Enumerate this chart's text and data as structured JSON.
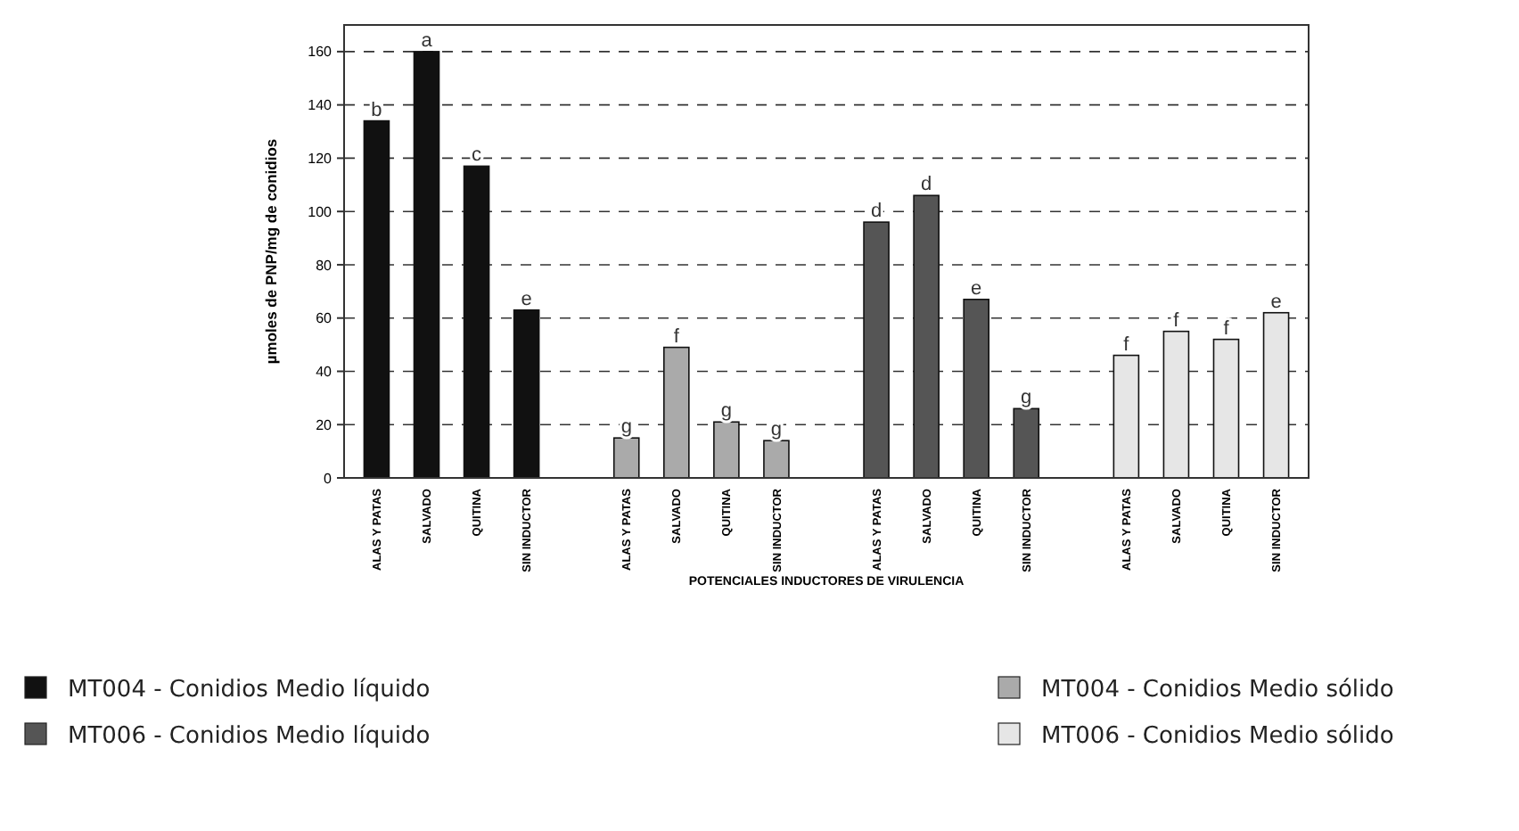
{
  "chart_data": {
    "type": "bar",
    "xlabel": "POTENCIALES INDUCTORES DE VIRULENCIA",
    "ylabel": "µmoles de PNP/mg de conidios",
    "categories": [
      "ALAS Y PATAS",
      "SALVADO",
      "QUITINA",
      "SIN INDUCTOR",
      null,
      "ALAS Y PATAS",
      "SALVADO",
      "QUITINA",
      "SIN INDUCTOR",
      null,
      "ALAS Y PATAS",
      "SALVADO",
      "QUITINA",
      "SIN INDUCTOR",
      null,
      "ALAS Y PATAS",
      "SALVADO",
      "QUITINA",
      "SIN INDUCTOR"
    ],
    "series": [
      {
        "name": "MT004 - Conidios Medio líquido",
        "color": "#111111",
        "values": [
          134,
          160,
          117,
          63,
          null,
          null,
          null,
          null,
          null,
          null,
          null,
          null,
          null,
          null,
          null,
          null,
          null,
          null,
          null
        ],
        "value_labels": [
          "b",
          "a",
          "c",
          "e",
          null,
          null,
          null,
          null,
          null,
          null,
          null,
          null,
          null,
          null,
          null,
          null,
          null,
          null,
          null
        ]
      },
      {
        "name": "MT006 - Conidios Medio líquido",
        "color": "#555555",
        "values": [
          null,
          null,
          null,
          null,
          null,
          null,
          null,
          null,
          null,
          null,
          96,
          106,
          67,
          26,
          null,
          null,
          null,
          null,
          null
        ],
        "value_labels": [
          null,
          null,
          null,
          null,
          null,
          null,
          null,
          null,
          null,
          null,
          "d",
          "d",
          "e",
          "g",
          null,
          null,
          null,
          null,
          null
        ]
      },
      {
        "name": "MT004 - Conidios Medio sólido",
        "color": "#aaaaaa",
        "values": [
          null,
          null,
          null,
          null,
          null,
          15,
          49,
          21,
          14,
          null,
          null,
          null,
          null,
          null,
          null,
          null,
          null,
          null,
          null
        ],
        "value_labels": [
          null,
          null,
          null,
          null,
          null,
          "g",
          "f",
          "g",
          "g",
          null,
          null,
          null,
          null,
          null,
          null,
          null,
          null,
          null,
          null
        ]
      },
      {
        "name": "MT006 - Conidios Medio sólido",
        "color": "#e6e6e6",
        "values": [
          null,
          null,
          null,
          null,
          null,
          null,
          null,
          null,
          null,
          null,
          null,
          null,
          null,
          null,
          null,
          46,
          55,
          52,
          62
        ],
        "value_labels": [
          null,
          null,
          null,
          null,
          null,
          null,
          null,
          null,
          null,
          null,
          null,
          null,
          null,
          null,
          null,
          "f",
          "f",
          "f",
          "e"
        ]
      }
    ],
    "ylim": [
      0,
      170
    ],
    "yticks": [
      0,
      20,
      40,
      60,
      80,
      100,
      120,
      140,
      160
    ],
    "grid": "y",
    "legend": "bottom"
  }
}
